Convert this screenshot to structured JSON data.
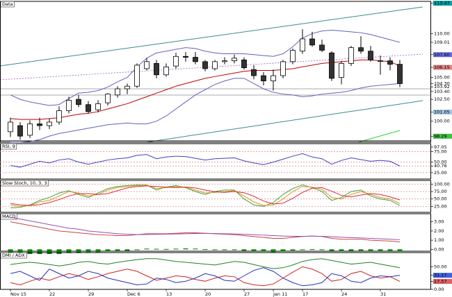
{
  "chart_data": [
    {
      "type": "candlestick",
      "title": "Data",
      "categories": [
        "Nov 15",
        null,
        null,
        null,
        "22",
        null,
        null,
        null,
        "29",
        null,
        null,
        null,
        "Dec 6",
        null,
        null,
        null,
        "13",
        null,
        null,
        null,
        "20",
        null,
        null,
        null,
        "27",
        null,
        null,
        "Jan 11",
        null,
        null,
        "17",
        null,
        null,
        null,
        "24",
        null,
        null,
        null,
        "31",
        null,
        null
      ],
      "open": [
        98.8,
        99.5,
        98.4,
        99.7,
        99.5,
        99.9,
        101.2,
        102.5,
        101.9,
        101.3,
        102.1,
        103.0,
        103.7,
        104.0,
        106.0,
        106.6,
        105.3,
        106.3,
        107.4,
        107.3,
        106.8,
        106.0,
        106.8,
        106.9,
        107.0,
        105.9,
        105.2,
        104.6,
        105.2,
        106.8,
        108.0,
        109.4,
        108.7,
        107.8,
        105.0,
        106.6,
        108.4,
        108.0,
        106.9,
        106.9,
        106.5
      ],
      "high": [
        100.4,
        99.9,
        100.1,
        100.4,
        100.3,
        101.7,
        102.8,
        103.0,
        102.3,
        102.4,
        103.2,
        104.0,
        104.3,
        106.6,
        107.2,
        107.0,
        106.6,
        107.8,
        107.9,
        107.9,
        107.0,
        107.0,
        107.3,
        107.6,
        107.3,
        106.4,
        105.6,
        105.9,
        107.0,
        108.3,
        110.5,
        110.2,
        109.3,
        108.0,
        106.9,
        108.6,
        109.7,
        108.6,
        107.5,
        107.3,
        107.0
      ],
      "low": [
        98.2,
        97.9,
        98.1,
        99.0,
        99.1,
        99.6,
        100.9,
        101.6,
        100.9,
        101.0,
        101.8,
        102.7,
        103.1,
        103.8,
        105.8,
        104.9,
        105.1,
        106.0,
        106.8,
        106.5,
        105.7,
        105.8,
        106.5,
        106.6,
        105.9,
        104.8,
        104.1,
        103.5,
        104.9,
        106.5,
        107.7,
        108.5,
        107.9,
        104.6,
        104.2,
        106.3,
        107.7,
        106.8,
        105.3,
        105.8,
        103.9
      ],
      "close": [
        99.9,
        98.3,
        99.7,
        99.5,
        99.9,
        101.2,
        102.4,
        101.9,
        101.1,
        102.0,
        103.1,
        103.7,
        104.0,
        106.4,
        106.8,
        105.3,
        106.2,
        107.4,
        107.3,
        106.8,
        106.0,
        106.8,
        106.9,
        107.2,
        106.1,
        105.2,
        104.6,
        105.2,
        106.8,
        108.1,
        109.4,
        108.7,
        108.1,
        104.9,
        106.6,
        108.4,
        108.0,
        107.0,
        106.9,
        106.5,
        104.3
      ],
      "up_color": "#ffffff",
      "down_color": "#333333",
      "series": [
        {
          "color": "#c00000",
          "values": [
            100.3,
            100.2,
            100.2,
            100.2,
            100.3,
            100.4,
            100.6,
            100.8,
            100.9,
            101.1,
            101.4,
            101.7,
            102.0,
            102.4,
            102.8,
            103.2,
            103.6,
            104.0,
            104.3,
            104.6,
            104.9,
            105.1,
            105.3,
            105.5,
            105.7,
            105.8,
            105.8,
            105.8,
            105.9,
            106.0,
            106.2,
            106.4,
            106.6,
            106.7,
            106.8,
            106.9,
            107.0,
            107.0,
            106.9,
            106.8,
            106.3
          ]
        },
        {
          "color": "#6060c0",
          "values": [
            103.0,
            102.5,
            102.2,
            102.0,
            101.8,
            101.9,
            102.6,
            103.2,
            103.3,
            103.5,
            103.9,
            104.5,
            105.0,
            106.2,
            107.2,
            107.8,
            108.0,
            108.2,
            108.4,
            108.3,
            108.0,
            107.8,
            107.7,
            107.7,
            107.7,
            107.6,
            107.5,
            107.4,
            107.7,
            108.5,
            109.5,
            110.0,
            110.3,
            110.4,
            110.3,
            110.2,
            110.1,
            109.9,
            109.6,
            109.3,
            109.0
          ]
        },
        {
          "color": "#6060c0",
          "values": [
            97.6,
            97.6,
            97.7,
            97.9,
            98.3,
            98.6,
            98.8,
            99.0,
            99.2,
            99.4,
            99.6,
            99.7,
            99.8,
            99.7,
            99.7,
            100.0,
            100.6,
            101.4,
            102.2,
            103.0,
            103.6,
            104.2,
            104.6,
            104.9,
            104.9,
            104.3,
            103.7,
            103.3,
            103.1,
            103.0,
            102.8,
            102.9,
            103.1,
            103.2,
            103.3,
            103.5,
            103.8,
            104.0,
            104.1,
            104.2,
            104.3
          ]
        }
      ],
      "ylim": [
        97.6,
        113.6
      ],
      "yticks": [
        {
          "value": 113.47,
          "label": "113.47",
          "color": "#00a0a0"
        },
        {
          "value": 110,
          "label": "110.00"
        },
        {
          "value": 109.01,
          "label": "109.01"
        },
        {
          "value": 107.6,
          "label": "107.60",
          "color": "#6a6ae0"
        },
        {
          "value": 106.15,
          "label": "106.15",
          "color": "#e08080"
        },
        {
          "value": 105,
          "label": "105.00"
        },
        {
          "value": 104.3,
          "label": "104.30"
        },
        {
          "value": 103.92,
          "label": "103.92"
        },
        {
          "value": 103.4,
          "label": "103.40"
        },
        {
          "value": 102.5,
          "label": "102.50"
        },
        {
          "value": 101.05,
          "label": "101.05",
          "color": "#a0c0e0"
        },
        {
          "value": 100,
          "label": "100.00"
        },
        {
          "value": 98.29,
          "label": "98.29",
          "color": "#40c040"
        },
        {
          "value": 97.05,
          "label": "97.05"
        }
      ],
      "grid": false
    },
    {
      "type": "line",
      "title": "RSI, 9",
      "ylim": [
        10,
        92
      ],
      "yticks": [
        {
          "value": 75,
          "label": "75.00"
        },
        {
          "value": 50,
          "label": "50.00"
        },
        {
          "value": 40.76,
          "label": "40.76"
        },
        {
          "value": 25,
          "label": "25.00"
        }
      ],
      "grid": true,
      "grid_color": "#e08080",
      "series": [
        {
          "color": "#4040c0",
          "values": [
            42,
            38,
            45,
            52,
            48,
            55,
            58,
            50,
            45,
            50,
            55,
            58,
            60,
            66,
            68,
            58,
            62,
            64,
            63,
            59,
            55,
            58,
            59,
            60,
            53,
            48,
            44,
            50,
            57,
            64,
            70,
            62,
            58,
            45,
            54,
            60,
            56,
            52,
            54,
            52,
            40.76
          ]
        }
      ]
    },
    {
      "type": "line",
      "title": "Slow Stoch, 10, 3, 3",
      "ylim": [
        5,
        110
      ],
      "yticks": [
        {
          "value": 100,
          "label": "100.00"
        },
        {
          "value": 75,
          "label": "75.00"
        },
        {
          "value": 50,
          "label": "50.00"
        },
        {
          "value": 25,
          "label": "25.00"
        }
      ],
      "grid": true,
      "grid_color": "#e08080",
      "series": [
        {
          "color": "#40a040",
          "values": [
            20,
            22,
            30,
            45,
            55,
            70,
            78,
            65,
            55,
            70,
            85,
            92,
            95,
            97,
            97,
            80,
            90,
            95,
            88,
            75,
            65,
            75,
            80,
            80,
            50,
            30,
            25,
            38,
            65,
            85,
            97,
            88,
            75,
            45,
            55,
            75,
            80,
            60,
            50,
            45,
            28
          ]
        },
        {
          "color": "#e09020",
          "values": [
            30,
            25,
            28,
            40,
            45,
            60,
            75,
            70,
            60,
            65,
            80,
            88,
            92,
            95,
            96,
            85,
            88,
            92,
            90,
            80,
            70,
            72,
            75,
            78,
            60,
            40,
            28,
            30,
            50,
            75,
            92,
            90,
            82,
            55,
            50,
            65,
            75,
            65,
            55,
            50,
            35
          ]
        },
        {
          "color": "#d03030",
          "values": [
            35,
            30,
            28,
            31,
            38,
            48,
            60,
            68,
            68,
            65,
            68,
            78,
            87,
            92,
            94,
            92,
            90,
            88,
            90,
            87,
            80,
            74,
            72,
            75,
            71,
            59,
            43,
            33,
            36,
            52,
            72,
            86,
            88,
            76,
            62,
            57,
            63,
            68,
            65,
            57,
            47
          ]
        }
      ]
    },
    {
      "type": "macd",
      "title": "MACD",
      "ylim": [
        -0.2,
        3.8
      ],
      "yticks": [
        {
          "value": 3,
          "label": "3.00"
        },
        {
          "value": 2,
          "label": "2.00"
        },
        {
          "value": 1,
          "label": "1.00"
        },
        {
          "value": 0,
          "label": "0.00"
        }
      ],
      "grid": false,
      "series": [
        {
          "color": "#d04040",
          "values": [
            3.0,
            2.8,
            2.6,
            2.4,
            2.2,
            2.0,
            1.9,
            1.8,
            1.7,
            1.6,
            1.55,
            1.5,
            1.5,
            1.6,
            1.7,
            1.7,
            1.7,
            1.75,
            1.8,
            1.8,
            1.75,
            1.7,
            1.65,
            1.6,
            1.5,
            1.4,
            1.3,
            1.2,
            1.2,
            1.3,
            1.4,
            1.45,
            1.4,
            1.2,
            1.1,
            1.1,
            1.1,
            1.0,
            0.95,
            0.9,
            0.8
          ]
        },
        {
          "color": "#9050b0",
          "values": [
            3.5,
            3.3,
            3.1,
            2.9,
            2.7,
            2.5,
            2.3,
            2.2,
            2.0,
            1.9,
            1.8,
            1.7,
            1.65,
            1.6,
            1.62,
            1.64,
            1.66,
            1.68,
            1.7,
            1.72,
            1.73,
            1.72,
            1.7,
            1.68,
            1.64,
            1.6,
            1.55,
            1.5,
            1.45,
            1.42,
            1.42,
            1.43,
            1.42,
            1.38,
            1.32,
            1.28,
            1.24,
            1.2,
            1.15,
            1.1,
            1.05
          ]
        }
      ],
      "histogram": {
        "color": "#008000",
        "values": [
          -0.5,
          -0.5,
          -0.5,
          -0.5,
          -0.5,
          -0.5,
          -0.4,
          -0.4,
          -0.3,
          -0.3,
          -0.25,
          -0.2,
          -0.15,
          0,
          0.08,
          0.06,
          0.04,
          0.07,
          0.1,
          0.08,
          0.02,
          -0.02,
          -0.05,
          -0.08,
          -0.14,
          -0.2,
          -0.25,
          -0.3,
          -0.25,
          -0.12,
          -0.02,
          0.02,
          -0.02,
          -0.18,
          -0.22,
          -0.18,
          -0.14,
          -0.2,
          -0.2,
          -0.2,
          -0.25
        ]
      }
    },
    {
      "type": "line",
      "title": "DMI / ADX",
      "ylim": [
        0,
        80
      ],
      "yticks": [
        {
          "value": 50,
          "label": "50.00"
        },
        {
          "value": 31.17,
          "label": "31.17",
          "color": "#4060e0"
        },
        {
          "value": 17.57,
          "label": "17.57",
          "color": "#e06060"
        },
        {
          "value": 0,
          "label": "0.00"
        }
      ],
      "grid": false,
      "series": [
        {
          "color": "#208020",
          "values": [
            55,
            58,
            60,
            58,
            55,
            52,
            55,
            60,
            62,
            58,
            56,
            60,
            63,
            66,
            68,
            68,
            65,
            62,
            60,
            58,
            56,
            54,
            58,
            62,
            60,
            55,
            50,
            46,
            48,
            54,
            62,
            66,
            68,
            64,
            60,
            56,
            58,
            60,
            56,
            52,
            48
          ]
        },
        {
          "color": "#d02020",
          "values": [
            15,
            10,
            18,
            25,
            20,
            28,
            35,
            30,
            22,
            28,
            35,
            40,
            45,
            40,
            30,
            20,
            25,
            30,
            28,
            22,
            18,
            25,
            30,
            28,
            15,
            10,
            8,
            12,
            25,
            38,
            50,
            45,
            35,
            18,
            22,
            35,
            40,
            30,
            25,
            28,
            17.57
          ]
        },
        {
          "color": "#2030c0",
          "values": [
            35,
            40,
            30,
            20,
            45,
            35,
            25,
            30,
            40,
            35,
            25,
            20,
            15,
            10,
            12,
            25,
            22,
            15,
            18,
            25,
            35,
            30,
            20,
            18,
            30,
            42,
            48,
            40,
            25,
            15,
            8,
            10,
            15,
            35,
            30,
            18,
            15,
            25,
            30,
            28,
            31.17
          ]
        }
      ]
    }
  ]
}
